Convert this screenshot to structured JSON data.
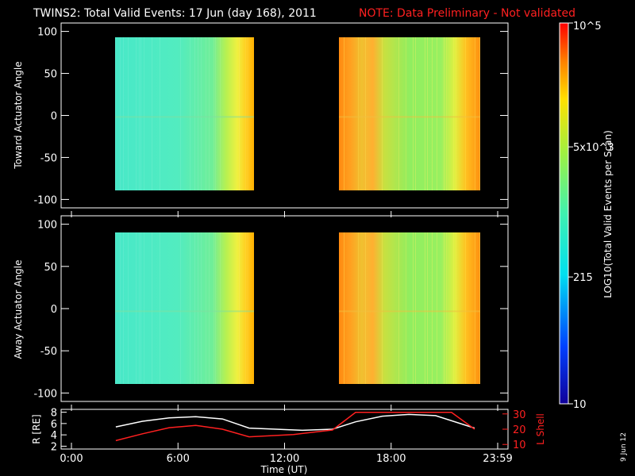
{
  "title": {
    "main": "TWINS2: Total Valid Events: 17 Jun (day 168), 2011",
    "note": "NOTE: Data Preliminary - Not validated"
  },
  "date_stamp": "9 Jun 12",
  "colors": {
    "background": "#000000",
    "axes": "#ffffff",
    "note": "#ff2020",
    "r_line": "#ffffff",
    "lshell_line": "#ff2020"
  },
  "chart_data": [
    {
      "type": "heatmap",
      "ylabel": "Toward Actuator Angle",
      "ylim": [
        -110,
        110
      ],
      "yticks": [
        "-100",
        "-50",
        "0",
        "50",
        "100"
      ],
      "xlim": [
        0,
        24
      ],
      "data_blocks": [
        {
          "x_start": 2.5,
          "x_end": 10.1,
          "y_start": -88,
          "y_end": 90,
          "level": "mid (cyan-green), rising to yellow/orange at end"
        },
        {
          "x_start": 14.7,
          "x_end": 22.7,
          "y_start": -88,
          "y_end": 90,
          "level": "high (orange) near start, green mid, yellow/orange at end"
        }
      ]
    },
    {
      "type": "heatmap",
      "ylabel": "Away Actuator Angle",
      "ylim": [
        -110,
        110
      ],
      "yticks": [
        "-100",
        "-50",
        "0",
        "50",
        "100"
      ],
      "xlim": [
        0,
        24
      ],
      "data_blocks": [
        {
          "x_start": 2.5,
          "x_end": 10.1,
          "y_start": -88,
          "y_end": 90,
          "level": "mid (cyan-green), rising to yellow at end"
        },
        {
          "x_start": 14.7,
          "x_end": 22.7,
          "y_start": -88,
          "y_end": 90,
          "level": "high (orange) near start, green mid, yellow/orange at end"
        }
      ]
    },
    {
      "type": "line",
      "xlabel": "Time (UT)",
      "xlim": [
        0,
        24
      ],
      "xticks": [
        "0:00",
        "6:00",
        "12:00",
        "18:00",
        "23:59"
      ],
      "left_axis": {
        "label": "R [RE]",
        "ylim": [
          1.5,
          8.5
        ],
        "yticks": [
          "2",
          "4",
          "6",
          "8"
        ]
      },
      "right_axis": {
        "label": "L Shell",
        "ylim": [
          7,
          33
        ],
        "yticks": [
          "10",
          "20",
          "30"
        ]
      },
      "series": [
        {
          "name": "R",
          "axis": "left",
          "x": [
            2.5,
            4,
            5.5,
            7,
            8.5,
            10,
            11.5,
            13,
            14.7,
            16,
            17.5,
            19,
            20.5,
            22.7
          ],
          "y": [
            5.4,
            6.4,
            7.0,
            7.2,
            6.8,
            5.2,
            5.0,
            4.8,
            5.0,
            6.3,
            7.3,
            7.6,
            7.4,
            5.2
          ]
        },
        {
          "name": "L Shell",
          "axis": "right",
          "x": [
            2.5,
            4,
            5.5,
            7,
            8.5,
            10,
            12.5,
            14.7,
            16.0,
            21.4,
            22.7
          ],
          "y": [
            12.5,
            17,
            21,
            22.5,
            20,
            15,
            16.5,
            19.5,
            31,
            31,
            20
          ]
        }
      ]
    }
  ],
  "colorbar": {
    "label": "LOG10(Total Valid Events per Scan)",
    "scale": "log",
    "range": [
      10,
      100000
    ],
    "tick_labels": [
      "10",
      "215",
      "5x10^3",
      "10^5"
    ]
  }
}
